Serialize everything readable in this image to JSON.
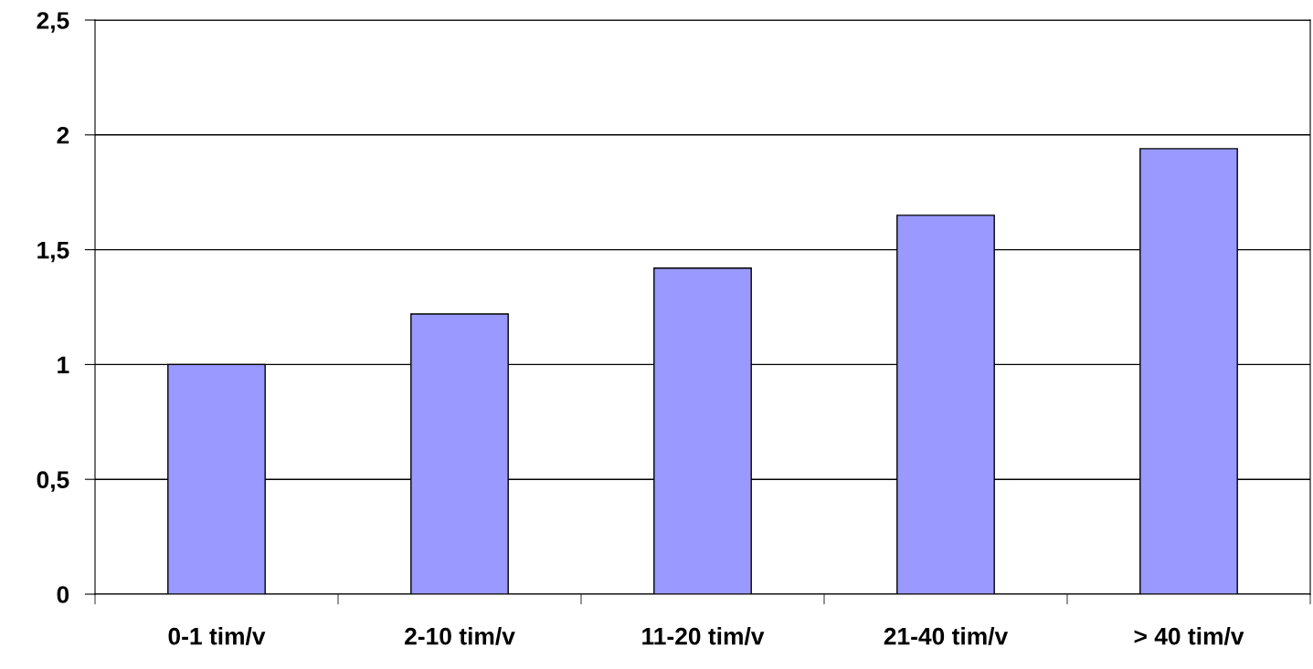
{
  "chart_data": {
    "type": "bar",
    "categories": [
      "0-1 tim/v",
      "2-10 tim/v",
      "11-20 tim/v",
      "21-40 tim/v",
      "> 40 tim/v"
    ],
    "values": [
      1.0,
      1.22,
      1.42,
      1.65,
      1.94
    ],
    "color": "#9999ff",
    "ylim": [
      0,
      2.5
    ],
    "yticks": [
      {
        "value": 0,
        "label": "0"
      },
      {
        "value": 0.5,
        "label": "0,5"
      },
      {
        "value": 1,
        "label": "1"
      },
      {
        "value": 1.5,
        "label": "1,5"
      },
      {
        "value": 2,
        "label": "2"
      },
      {
        "value": 2.5,
        "label": "2,5"
      }
    ],
    "grid": "y"
  }
}
